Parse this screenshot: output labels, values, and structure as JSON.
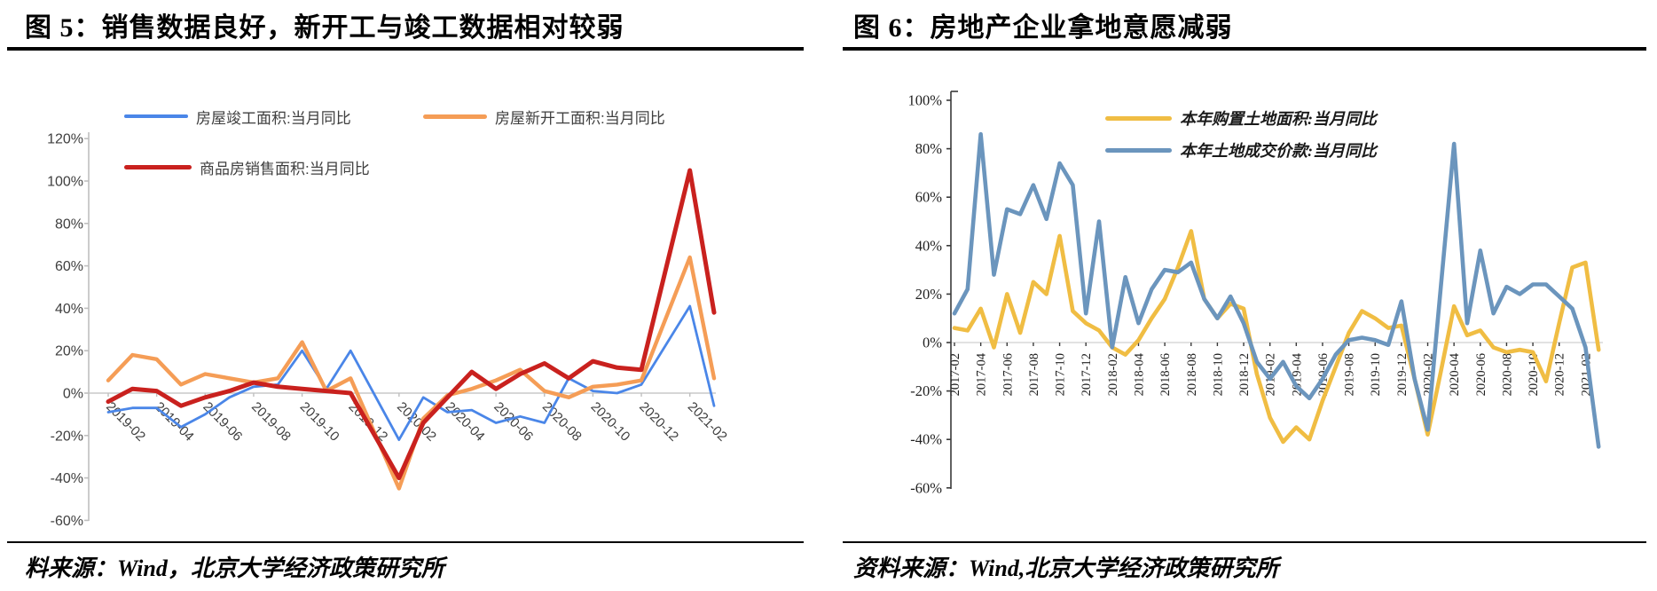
{
  "panels": {
    "left": {
      "title": "图 5：销售数据良好，新开工与竣工数据相对较弱",
      "source": "料来源：Wind，北京大学经济政策研究所"
    },
    "right": {
      "title": "图 6：房地产企业拿地意愿减弱",
      "source": "资料来源：Wind,北京大学经济政策研究所"
    }
  },
  "chart_data": [
    {
      "type": "line",
      "title": "图 5：销售数据良好，新开工与竣工数据相对较弱",
      "xlabel": "",
      "ylabel": "",
      "ylim": [
        -60,
        120
      ],
      "grid": "zero-line-only",
      "legend_position": "top-left-two-rows",
      "x_label_every": 2,
      "y_tick_values": [
        120,
        100,
        80,
        60,
        40,
        20,
        0,
        -20,
        -40,
        -60
      ],
      "y_tick_labels": [
        "120%",
        "100%",
        "80%",
        "60%",
        "40%",
        "20%",
        "0%",
        "-20%",
        "-40%",
        "-60%"
      ],
      "categories": [
        "2019-02",
        "2019-03",
        "2019-04",
        "2019-05",
        "2019-06",
        "2019-07",
        "2019-08",
        "2019-09",
        "2019-10",
        "2019-11",
        "2019-12",
        "2020-01",
        "2020-02",
        "2020-03",
        "2020-04",
        "2020-05",
        "2020-06",
        "2020-07",
        "2020-08",
        "2020-09",
        "2020-10",
        "2020-11",
        "2020-12",
        "2021-01",
        "2021-02",
        "2021-03"
      ],
      "series": [
        {
          "name": "房屋竣工面积:当月同比",
          "color": "#4a86e8",
          "width": 2.8,
          "values": [
            -9,
            -7,
            -7,
            -16,
            -10,
            -2,
            3,
            4,
            20,
            2,
            20,
            null,
            -22,
            -2,
            -9,
            -8,
            -14,
            -11,
            -14,
            7,
            1,
            0,
            4,
            null,
            41,
            -6
          ]
        },
        {
          "name": "房屋新开工面积:当月同比",
          "color": "#f59d56",
          "width": 4.4,
          "values": [
            6,
            18,
            16,
            4,
            9,
            7,
            5,
            7,
            24,
            1,
            7,
            null,
            -45,
            -12,
            -1,
            2,
            6,
            11,
            1,
            -2,
            3,
            4,
            6,
            null,
            64,
            7
          ]
        },
        {
          "name": "商品房销售面积:当月同比",
          "color": "#c9211e",
          "width": 5,
          "values": [
            -4,
            2,
            1,
            -6,
            -2,
            1,
            5,
            3,
            2,
            1,
            0,
            null,
            -40,
            -14,
            -2,
            10,
            2,
            9,
            14,
            7,
            15,
            12,
            11,
            null,
            105,
            38
          ]
        }
      ]
    },
    {
      "type": "line",
      "title": "图 6：房地产企业拿地意愿减弱",
      "xlabel": "",
      "ylabel": "",
      "ylim": [
        -60,
        100
      ],
      "grid": "zero-line-only",
      "legend_position": "top-right-two-rows",
      "x_label_every": 2,
      "y_tick_values": [
        100,
        80,
        60,
        40,
        20,
        0,
        -20,
        -40,
        -60
      ],
      "y_tick_labels": [
        "100%",
        "80%",
        "60%",
        "40%",
        "20%",
        "0%",
        "-20%",
        "-40%",
        "-60%"
      ],
      "categories": [
        "2017-02",
        "2017-03",
        "2017-04",
        "2017-05",
        "2017-06",
        "2017-07",
        "2017-08",
        "2017-09",
        "2017-10",
        "2017-11",
        "2017-12",
        "2018-01",
        "2018-02",
        "2018-03",
        "2018-04",
        "2018-05",
        "2018-06",
        "2018-07",
        "2018-08",
        "2018-09",
        "2018-10",
        "2018-11",
        "2018-12",
        "2019-01",
        "2019-02",
        "2019-03",
        "2019-04",
        "2019-05",
        "2019-06",
        "2019-07",
        "2019-08",
        "2019-09",
        "2019-10",
        "2019-11",
        "2019-12",
        "2020-01",
        "2020-02",
        "2020-03",
        "2020-04",
        "2020-05",
        "2020-06",
        "2020-07",
        "2020-08",
        "2020-09",
        "2020-10",
        "2020-11",
        "2020-12",
        "2021-01",
        "2021-02",
        "2021-03"
      ],
      "series": [
        {
          "name": "本年购置土地面积:当月同比",
          "color": "#f0bd43",
          "width": 4.6,
          "values": [
            6,
            5,
            14,
            -2,
            20,
            4,
            25,
            20,
            44,
            13,
            8,
            5,
            -2,
            -5,
            1,
            10,
            18,
            31,
            46,
            18,
            10,
            16,
            14,
            -13,
            -31,
            -41,
            -35,
            -40,
            -24,
            -10,
            4,
            13,
            10,
            6,
            7,
            -15,
            -38,
            -12,
            15,
            3,
            5,
            -2,
            -4,
            -3,
            -4,
            -16,
            8,
            31,
            33,
            -3
          ]
        },
        {
          "name": "本年土地成交价款:当月同比",
          "color": "#6b95bd",
          "width": 4.6,
          "values": [
            12,
            22,
            86,
            28,
            55,
            53,
            65,
            51,
            74,
            65,
            12,
            50,
            -2,
            27,
            8,
            22,
            30,
            29,
            33,
            18,
            10,
            19,
            8,
            -8,
            -15,
            -8,
            -18,
            -23,
            -15,
            -5,
            1,
            2,
            1,
            -1,
            17,
            -15,
            -36,
            23,
            82,
            8,
            38,
            12,
            23,
            20,
            24,
            24,
            19,
            14,
            -2,
            -43
          ]
        }
      ]
    }
  ]
}
